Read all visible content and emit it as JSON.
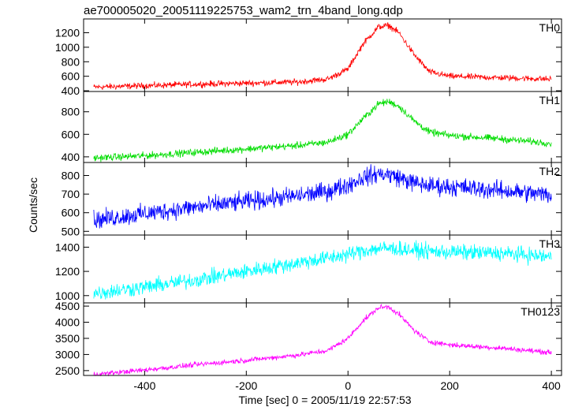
{
  "chart_data": {
    "type": "line",
    "title": "ae700005020_20051119225753_wam2_trn_4band_long.qdp",
    "xlabel": "Time [sec] 0 = 2005/11/19 22:57:53",
    "ylabel": "Counts/sec",
    "xlim": [
      -520,
      420
    ],
    "xticks": [
      -400,
      -200,
      0,
      200,
      400
    ],
    "panels": [
      {
        "name": "TH0",
        "color": "#ff0000",
        "ylim": [
          390,
          1390
        ],
        "yticks": [
          400,
          600,
          800,
          1000,
          1200
        ],
        "noise": 30,
        "x": [
          -500,
          -400,
          -300,
          -200,
          -100,
          -40,
          0,
          30,
          60,
          80,
          100,
          130,
          160,
          200,
          300,
          400
        ],
        "y": [
          450,
          470,
          490,
          505,
          520,
          560,
          700,
          1050,
          1280,
          1300,
          1200,
          900,
          660,
          600,
          580,
          560
        ]
      },
      {
        "name": "TH1",
        "color": "#00dd00",
        "ylim": [
          350,
          980
        ],
        "yticks": [
          400,
          600,
          800
        ],
        "noise": 22,
        "x": [
          -500,
          -400,
          -300,
          -200,
          -100,
          -40,
          0,
          30,
          60,
          80,
          100,
          130,
          160,
          200,
          300,
          400
        ],
        "y": [
          390,
          410,
          440,
          470,
          500,
          530,
          600,
          740,
          870,
          890,
          850,
          720,
          620,
          590,
          560,
          520
        ]
      },
      {
        "name": "TH2",
        "color": "#0000ff",
        "ylim": [
          480,
          870
        ],
        "yticks": [
          500,
          600,
          700,
          800
        ],
        "noise": 35,
        "x": [
          -500,
          -400,
          -300,
          -200,
          -100,
          -40,
          0,
          30,
          60,
          80,
          100,
          130,
          160,
          200,
          300,
          400
        ],
        "y": [
          560,
          595,
          630,
          660,
          690,
          715,
          750,
          790,
          810,
          805,
          790,
          760,
          745,
          740,
          720,
          695
        ]
      },
      {
        "name": "TH3",
        "color": "#00ffff",
        "ylim": [
          940,
          1500
        ],
        "yticks": [
          1000,
          1200,
          1400
        ],
        "noise": 45,
        "x": [
          -500,
          -400,
          -300,
          -200,
          -100,
          -40,
          0,
          30,
          60,
          80,
          100,
          130,
          160,
          200,
          300,
          400
        ],
        "y": [
          1020,
          1070,
          1130,
          1200,
          1270,
          1310,
          1340,
          1370,
          1390,
          1390,
          1385,
          1375,
          1365,
          1360,
          1350,
          1320
        ]
      },
      {
        "name": "TH0123",
        "color": "#ff00ff",
        "ylim": [
          2350,
          4600
        ],
        "yticks": [
          2500,
          3000,
          3500,
          4000,
          4500
        ],
        "noise": 55,
        "x": [
          -500,
          -400,
          -300,
          -200,
          -100,
          -40,
          0,
          30,
          60,
          80,
          100,
          130,
          160,
          200,
          300,
          400
        ],
        "y": [
          2380,
          2520,
          2680,
          2820,
          2980,
          3120,
          3500,
          4050,
          4450,
          4480,
          4250,
          3750,
          3400,
          3300,
          3200,
          3060
        ]
      }
    ]
  }
}
